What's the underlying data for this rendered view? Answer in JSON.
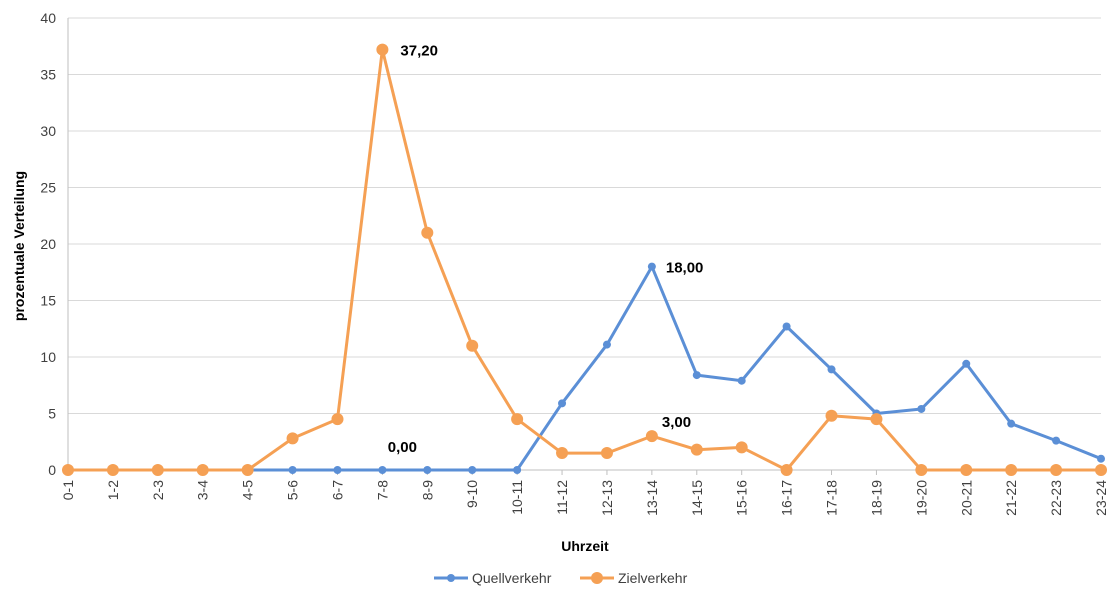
{
  "chart_data": {
    "type": "line",
    "xlabel": "Uhrzeit",
    "ylabel": "prozentuale Verteilung",
    "ylim": [
      0,
      40
    ],
    "yticks": [
      0,
      5,
      10,
      15,
      20,
      25,
      30,
      35,
      40
    ],
    "grid": true,
    "legend": "bottom",
    "categories": [
      "0-1",
      "1-2",
      "2-3",
      "3-4",
      "4-5",
      "5-6",
      "6-7",
      "7-8",
      "8-9",
      "9-10",
      "10-11",
      "11-12",
      "12-13",
      "13-14",
      "14-15",
      "15-16",
      "16-17",
      "17-18",
      "18-19",
      "19-20",
      "20-21",
      "21-22",
      "22-23",
      "23-24"
    ],
    "series": [
      {
        "name": "Quellverkehr",
        "color": "#5B8FD6",
        "values": [
          0,
          0,
          0,
          0,
          0,
          0,
          0,
          0,
          0,
          0,
          0,
          5.9,
          11.1,
          18.0,
          8.4,
          7.9,
          12.7,
          8.9,
          5.0,
          5.4,
          9.4,
          4.1,
          2.6,
          1.0
        ]
      },
      {
        "name": "Zielverkehr",
        "color": "#F5A054",
        "values": [
          0,
          0,
          0,
          0,
          0,
          2.8,
          4.5,
          37.2,
          21.0,
          11.0,
          4.5,
          1.5,
          1.5,
          3.0,
          1.8,
          2.0,
          0,
          4.8,
          4.5,
          0,
          0,
          0,
          0,
          0
        ]
      }
    ],
    "annotations": [
      {
        "text": "37,20",
        "series": 1,
        "index": 7
      },
      {
        "text": "18,00",
        "series": 0,
        "index": 13
      },
      {
        "text": "3,00",
        "series": 1,
        "index": 13
      },
      {
        "text": "0,00",
        "series": 0,
        "index": 7
      }
    ]
  }
}
